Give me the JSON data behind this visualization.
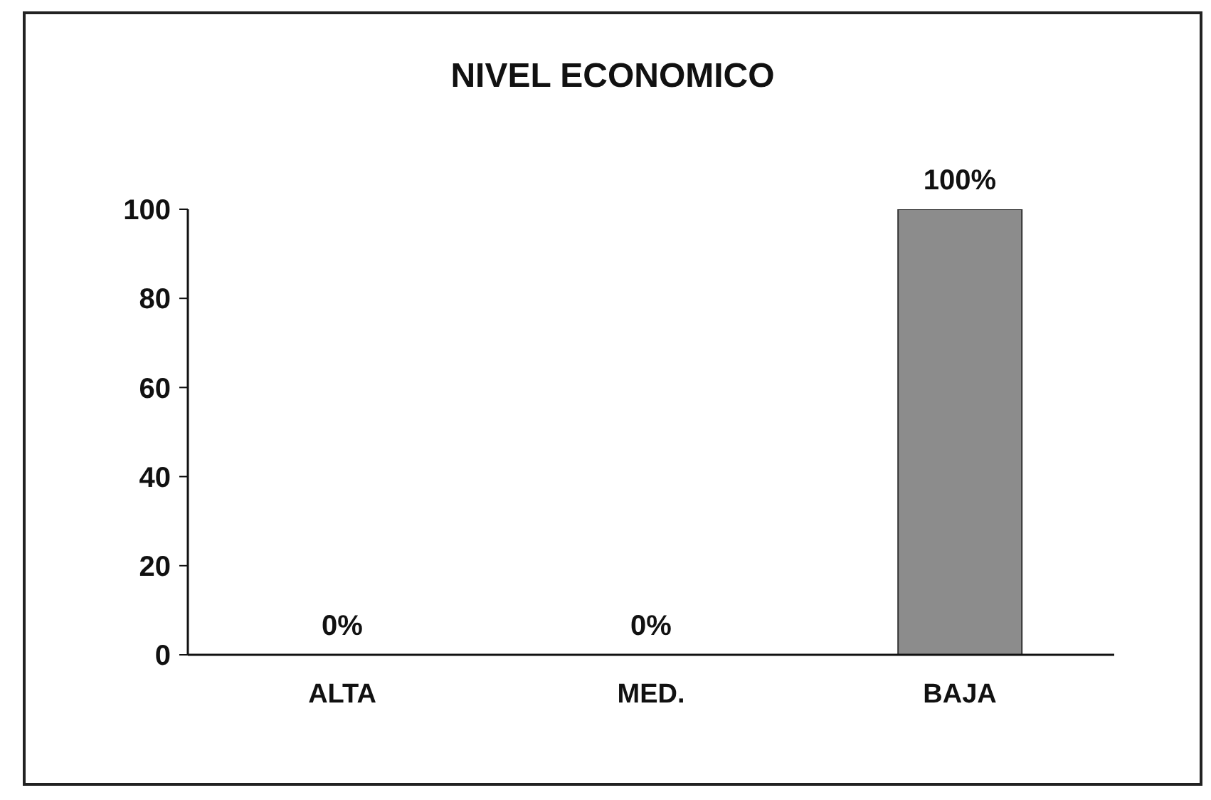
{
  "chart_data": {
    "type": "bar",
    "title": "NIVEL ECONOMICO",
    "categories": [
      "ALTA",
      "MED.",
      "BAJA"
    ],
    "values": [
      0,
      0,
      100
    ],
    "value_labels": [
      "0%",
      "0%",
      "100%"
    ],
    "color": "#8c8c8c",
    "ylim": [
      0,
      100
    ],
    "yticks": [
      0,
      20,
      40,
      60,
      80,
      100
    ],
    "grid": false,
    "legend": false
  }
}
